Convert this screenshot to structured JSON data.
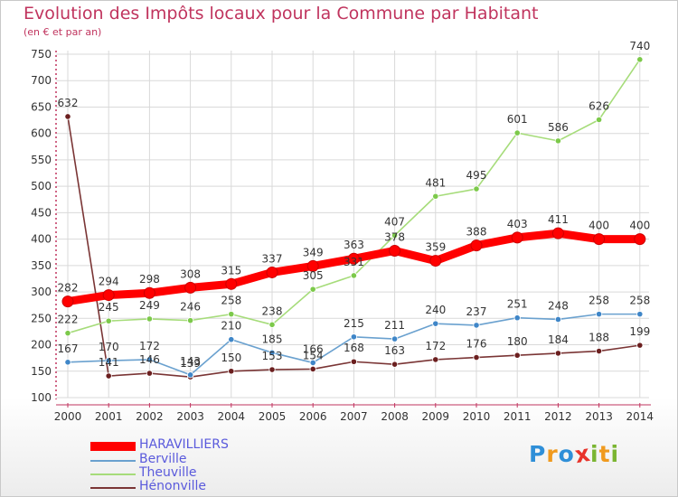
{
  "header": {
    "title": "Evolution des Impôts locaux pour la Commune par Habitant",
    "subtitle": "(en € et par an)"
  },
  "logo": {
    "letters": [
      "P",
      "r",
      "o",
      "x",
      "i",
      "t",
      "i"
    ],
    "colors": [
      "#2f8fd8",
      "#f09a1e",
      "#2f8fd8",
      "#e8332a",
      "#7ab531",
      "#f09a1e",
      "#7ab531"
    ]
  },
  "colors": {
    "title": "#c0345e",
    "axis": "#c0345e",
    "grid": "#d9d9d9",
    "legend_text": "#5a5adc"
  },
  "chart_data": {
    "type": "line",
    "title": "Evolution des Impôts locaux pour la Commune par Habitant",
    "subtitle": "(en € et par an)",
    "x": [
      2000,
      2001,
      2002,
      2003,
      2004,
      2005,
      2006,
      2007,
      2008,
      2009,
      2010,
      2011,
      2012,
      2013,
      2014
    ],
    "ylim": [
      100,
      750
    ],
    "yticks": [
      100,
      150,
      200,
      250,
      300,
      350,
      400,
      450,
      500,
      550,
      600,
      650,
      700,
      750
    ],
    "grid": true,
    "legend_position": "bottom-left",
    "series": [
      {
        "name": "HARAVILLIERS",
        "color": "#ff0000",
        "marker_color": "#ff0000",
        "emphasis": true,
        "values": [
          282,
          294,
          298,
          308,
          315,
          337,
          349,
          363,
          378,
          359,
          388,
          403,
          411,
          400,
          400
        ],
        "labels": [
          "282",
          "294",
          "298",
          "308",
          "315",
          "337",
          "349",
          "363",
          "378",
          "359",
          "388",
          "403",
          "411",
          "400",
          "400"
        ]
      },
      {
        "name": "Berville",
        "color": "#6aa1cf",
        "marker_color": "#3f86c8",
        "values": [
          167,
          170,
          172,
          143,
          210,
          185,
          166,
          215,
          211,
          240,
          237,
          251,
          248,
          258,
          258
        ],
        "labels": [
          "167",
          "170",
          "172",
          "143",
          "210",
          "185",
          "166",
          "215",
          "211",
          "240",
          "237",
          "251",
          "248",
          "258",
          "258"
        ]
      },
      {
        "name": "Theuville",
        "color": "#a6dc7a",
        "marker_color": "#7cc94a",
        "values": [
          222,
          245,
          249,
          246,
          258,
          238,
          305,
          331,
          407,
          481,
          495,
          601,
          586,
          626,
          740
        ],
        "labels": [
          "222",
          "245",
          "249",
          "246",
          "258",
          "238",
          "305",
          "331",
          "407",
          "481",
          "495",
          "601",
          "586",
          "626",
          "740"
        ]
      },
      {
        "name": "Hénonville",
        "color": "#7a3535",
        "marker_color": "#6b1f1f",
        "values": [
          632,
          141,
          146,
          139,
          150,
          153,
          154,
          168,
          163,
          172,
          176,
          180,
          184,
          188,
          199
        ],
        "labels": [
          "632",
          "141",
          "146",
          "139",
          "150",
          "153",
          "154",
          "168",
          "163",
          "172",
          "176",
          "180",
          "184",
          "188",
          "199"
        ]
      }
    ]
  }
}
